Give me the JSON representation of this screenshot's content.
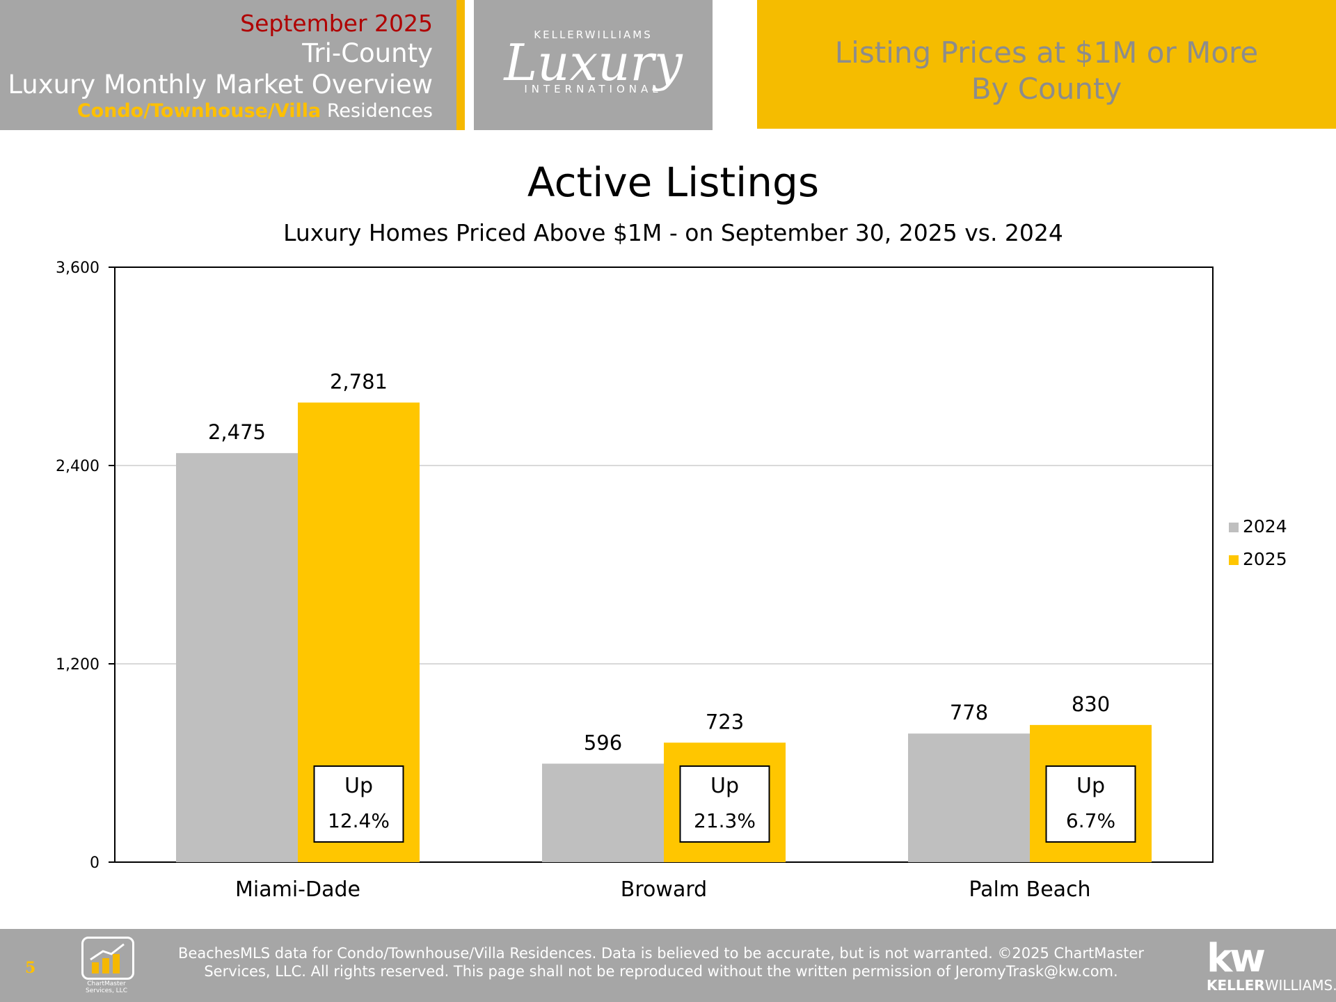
{
  "header": {
    "date": "September 2025",
    "region": "Tri-County",
    "report_title": "Luxury Monthly Market Overview",
    "property_type": "Condo/Townhouse/Villa",
    "property_suffix": "Residences",
    "logo": {
      "top": "KELLERWILLIAMS",
      "script": "Luxury",
      "bottom": "INTERNATIONAL"
    },
    "banner_line1": "Listing Prices at $1M or More",
    "banner_line2": "By County"
  },
  "colors": {
    "gray_bar": "#bfbfbf",
    "gold_bar": "#ffc600",
    "header_gray": "#a6a6a6",
    "header_gold": "#f5bc00",
    "date_red": "#b00000"
  },
  "chart_data": {
    "type": "bar",
    "title": "Active Listings",
    "subtitle": "Luxury Homes Priced Above $1M - on September 30,  2025 vs. 2024",
    "categories": [
      "Miami-Dade",
      "Broward",
      "Palm Beach"
    ],
    "series": [
      {
        "name": "2024",
        "values": [
          2475,
          596,
          778
        ],
        "color": "#bfbfbf"
      },
      {
        "name": "2025",
        "values": [
          2781,
          723,
          830
        ],
        "color": "#ffc600"
      }
    ],
    "value_labels": [
      [
        "2,475",
        "596",
        "778"
      ],
      [
        "2,781",
        "723",
        "830"
      ]
    ],
    "change_boxes": [
      {
        "line1": "Up",
        "line2": "12.4%"
      },
      {
        "line1": "Up",
        "line2": "21.3%"
      },
      {
        "line1": "Up",
        "line2": "6.7%"
      }
    ],
    "ylim": [
      0,
      3600
    ],
    "yticks": [
      0,
      1200,
      2400,
      3600
    ],
    "ytick_labels": [
      "0",
      "1,200",
      "2,400",
      "3,600"
    ],
    "grid": true,
    "legend_position": "right"
  },
  "footer": {
    "page_number": "5",
    "chartmaster_label": "ChartMaster Services, LLC",
    "disclaimer_line1": "BeachesMLS data for Condo/Townhouse/Villa Residences.  Data is believed to be accurate, but is not warranted.   ©2025  ChartMaster",
    "disclaimer_line2": "Services, LLC.  All rights reserved. This page shall not be reproduced without the written permission of JeromyTrask@kw.com.",
    "kw_mark": "kw",
    "kw_brand_bold": "KELLER",
    "kw_brand_rest": "WILLIAMS."
  }
}
